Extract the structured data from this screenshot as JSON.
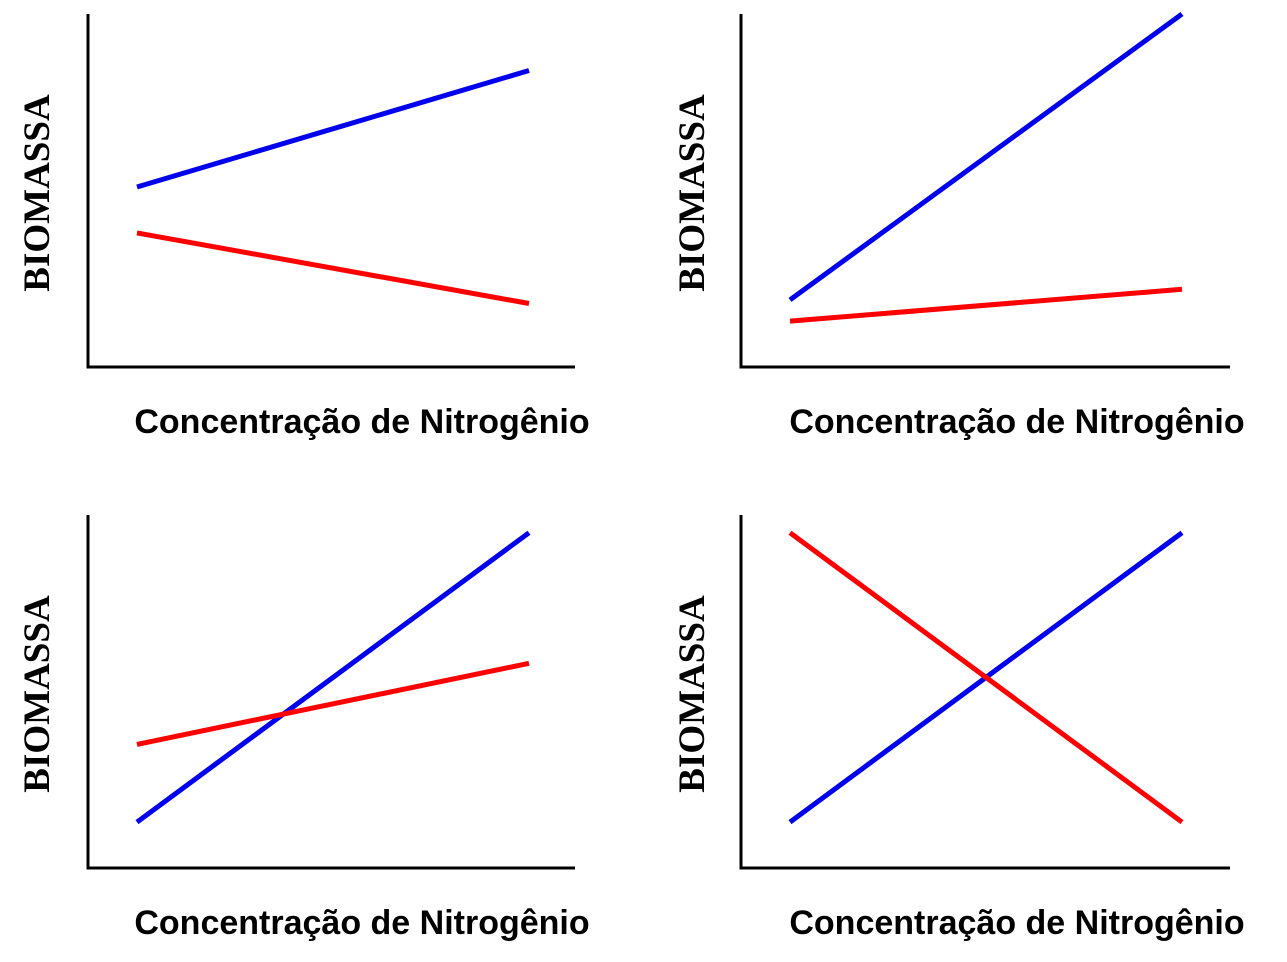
{
  "chart_data": [
    {
      "type": "line",
      "xlabel": "Concentração de Nitrogênio",
      "ylabel": "BIOMASSA",
      "xlim": [
        0,
        10
      ],
      "ylim": [
        0,
        10
      ],
      "series": [
        {
          "color": "#0000ee",
          "x": [
            1,
            9
          ],
          "y": [
            5.1,
            8.4
          ]
        },
        {
          "color": "#ff0000",
          "x": [
            1,
            9
          ],
          "y": [
            3.8,
            1.8
          ]
        }
      ]
    },
    {
      "type": "line",
      "xlabel": "Concentração de Nitrogênio",
      "ylabel": "BIOMASSA",
      "xlim": [
        0,
        10
      ],
      "ylim": [
        0,
        10
      ],
      "series": [
        {
          "color": "#0000ee",
          "x": [
            1,
            9
          ],
          "y": [
            1.9,
            10
          ]
        },
        {
          "color": "#ff0000",
          "x": [
            1,
            9
          ],
          "y": [
            1.3,
            2.2
          ]
        }
      ]
    },
    {
      "type": "line",
      "xlabel": "Concentração de Nitrogênio",
      "ylabel": "BIOMASSA",
      "xlim": [
        0,
        10
      ],
      "ylim": [
        0,
        10
      ],
      "series": [
        {
          "color": "#0000ee",
          "x": [
            1,
            9
          ],
          "y": [
            1.3,
            9.5
          ]
        },
        {
          "color": "#ff0000",
          "x": [
            1,
            9
          ],
          "y": [
            3.5,
            5.8
          ]
        }
      ]
    },
    {
      "type": "line",
      "xlabel": "Concentração de Nitrogênio",
      "ylabel": "BIOMASSA",
      "xlim": [
        0,
        10
      ],
      "ylim": [
        0,
        10
      ],
      "series": [
        {
          "color": "#0000ee",
          "x": [
            1,
            9
          ],
          "y": [
            1.3,
            9.5
          ]
        },
        {
          "color": "#ff0000",
          "x": [
            1,
            9
          ],
          "y": [
            9.5,
            1.3
          ]
        }
      ]
    }
  ]
}
